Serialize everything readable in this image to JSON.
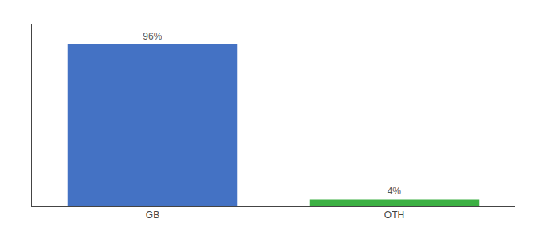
{
  "chart_data": {
    "type": "bar",
    "categories": [
      "GB",
      "OTH"
    ],
    "values": [
      96,
      4
    ],
    "value_labels": [
      "96%",
      "4%"
    ],
    "data_labels": true,
    "colors": [
      "#4472c4",
      "#3cb043"
    ],
    "ylim": [
      0,
      108
    ],
    "grid": false,
    "tick_labels": "x"
  }
}
